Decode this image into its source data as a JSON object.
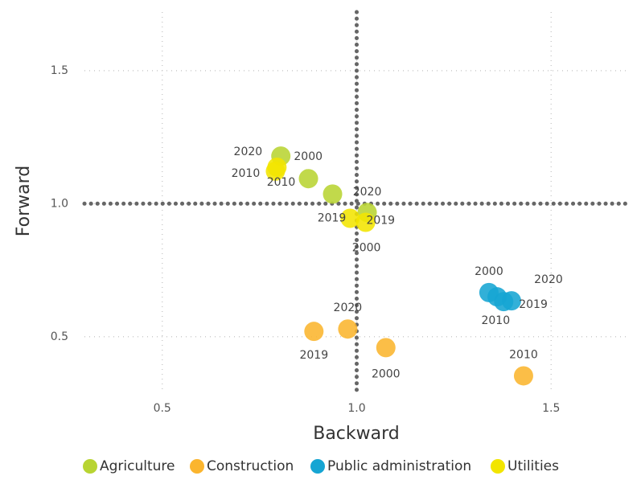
{
  "chart_data": {
    "type": "scatter",
    "x_label": "Backward",
    "y_label": "Forward",
    "xlim": [
      0.3,
      1.7
    ],
    "ylim": [
      0.3,
      1.72
    ],
    "xticks": [
      0.5,
      {
        "value": 1,
        "label": "1.0"
      },
      1.5
    ],
    "yticks": [
      0.5,
      {
        "value": 1,
        "label": "1.0"
      },
      1.5
    ],
    "grid": true,
    "vline": 1,
    "hline": 1,
    "legend": "bottom",
    "series": [
      {
        "name": "Agriculture",
        "color": "#b8d432",
        "x": [
          0.805,
          0.876,
          0.938,
          1.027
        ],
        "values": [
          1.179,
          1.094,
          1.036,
          0.967
        ],
        "labels": [
          "2000",
          "2010",
          "2019",
          "2020"
        ]
      },
      {
        "name": "Construction",
        "color": "#fbb52e",
        "x": [
          0.89,
          0.977,
          1.075,
          1.429
        ],
        "values": [
          0.52,
          0.529,
          0.459,
          0.353
        ],
        "labels": [
          "2019",
          "2020",
          "2000",
          "2010"
        ]
      },
      {
        "name": "Public administration",
        "color": "#16a5d3",
        "x": [
          1.34,
          1.378,
          1.361,
          1.398
        ],
        "values": [
          0.666,
          0.632,
          0.65,
          0.635
        ],
        "labels": [
          "2000",
          "2010",
          "2019",
          "2020"
        ]
      },
      {
        "name": "Utilities",
        "color": "#f2e500",
        "x": [
          0.795,
          0.791,
          0.983,
          1.023
        ],
        "values": [
          1.137,
          1.122,
          0.945,
          0.93
        ],
        "labels": [
          "2020",
          "2010",
          "2019",
          "2000"
        ]
      }
    ]
  }
}
